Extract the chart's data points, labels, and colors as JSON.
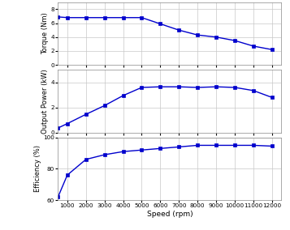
{
  "speed": [
    500,
    1000,
    2000,
    3000,
    4000,
    5000,
    6000,
    7000,
    8000,
    9000,
    10000,
    11000,
    12000
  ],
  "torque": [
    6.9,
    6.8,
    6.8,
    6.8,
    6.8,
    6.8,
    5.9,
    5.0,
    4.3,
    4.0,
    3.5,
    2.7,
    2.2
  ],
  "power": [
    0.36,
    0.71,
    1.45,
    2.15,
    2.95,
    3.6,
    3.65,
    3.65,
    3.6,
    3.65,
    3.6,
    3.35,
    2.8
  ],
  "efficiency": [
    62,
    76,
    86,
    89,
    91,
    92,
    93,
    94,
    95,
    95,
    95,
    95,
    94.5
  ],
  "line_color": "#0000cd",
  "marker": "s",
  "markersize": 2.8,
  "linewidth": 1.0,
  "torque_ylabel": "Torque (Nm)",
  "power_ylabel": "Output Power (kW)",
  "efficiency_ylabel": "Efficiency (%)",
  "xlabel": "Speed (rpm)",
  "torque_ylim": [
    0,
    9
  ],
  "torque_yticks": [
    0,
    2,
    4,
    6,
    8
  ],
  "power_ylim": [
    0,
    5
  ],
  "power_yticks": [
    0,
    2,
    4
  ],
  "efficiency_ylim": [
    60,
    100
  ],
  "efficiency_yticks": [
    60,
    80,
    100
  ],
  "xticks": [
    1000,
    2000,
    3000,
    4000,
    5000,
    6000,
    7000,
    8000,
    9000,
    10000,
    11000,
    12000
  ],
  "xlim": [
    500,
    12500
  ],
  "bg_color": "#ffffff",
  "axes_bg_color": "#ffffff",
  "grid_color": "#c8c8c8",
  "grid_linewidth": 0.5,
  "label_fontsize": 6.0,
  "tick_fontsize": 5.2,
  "xlabel_fontsize": 6.5
}
